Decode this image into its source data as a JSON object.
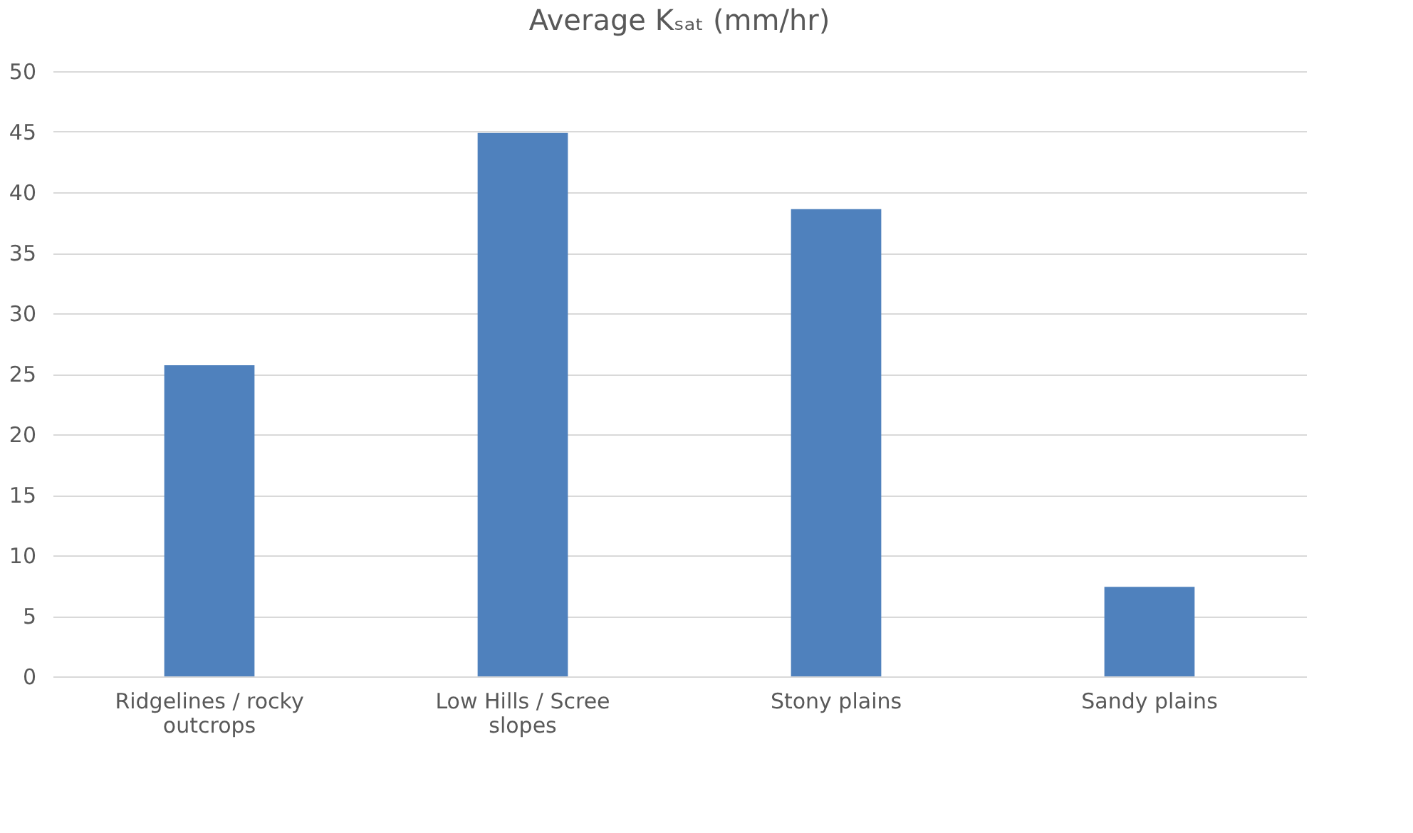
{
  "chart_data": {
    "type": "bar",
    "title": "Average Kₛₐₜ (mm/hr)",
    "categories": [
      "Ridgelines / rocky outcrops",
      "Low Hills / Scree slopes",
      "Stony plains",
      "Sandy plains"
    ],
    "values": [
      25.7,
      44.9,
      38.6,
      7.4
    ],
    "color": "#4f81bd",
    "ylim": [
      0,
      50
    ],
    "yticks": [
      0,
      5,
      10,
      15,
      20,
      25,
      30,
      35,
      40,
      45,
      50
    ],
    "grid": "y"
  }
}
